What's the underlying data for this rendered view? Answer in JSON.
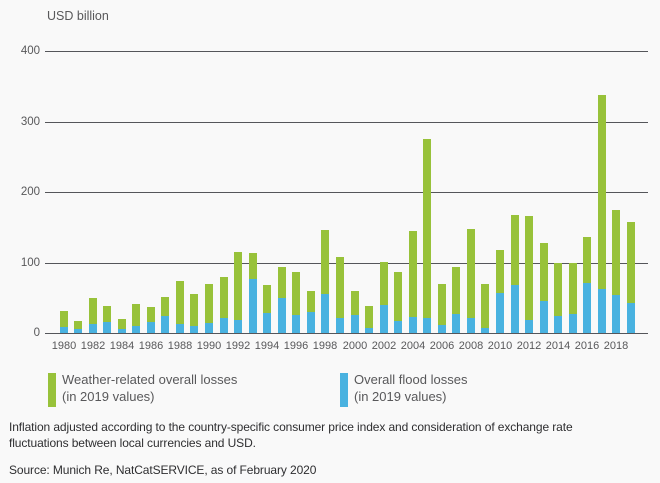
{
  "title": "USD billion",
  "chart_data": {
    "type": "bar",
    "title": "USD billion",
    "ylabel": "USD billion",
    "categories": [
      1980,
      1981,
      1982,
      1983,
      1984,
      1985,
      1986,
      1987,
      1988,
      1989,
      1990,
      1991,
      1992,
      1993,
      1994,
      1995,
      1996,
      1997,
      1998,
      1999,
      2000,
      2001,
      2002,
      2003,
      2004,
      2005,
      2006,
      2007,
      2008,
      2009,
      2010,
      2011,
      2012,
      2013,
      2014,
      2015,
      2016,
      2017,
      2018,
      2019
    ],
    "series": [
      {
        "name": "Weather-related overall losses (in 2019 values)",
        "color": "#98c23a",
        "values": [
          31,
          17,
          49,
          39,
          20,
          41,
          37,
          51,
          74,
          55,
          69,
          80,
          115,
          113,
          68,
          93,
          87,
          59,
          146,
          108,
          60,
          39,
          101,
          86,
          145,
          275,
          70,
          94,
          147,
          69,
          118,
          167,
          166,
          127,
          99,
          99,
          136,
          337,
          174,
          157
        ]
      },
      {
        "name": "Overall flood losses (in 2019 values)",
        "color": "#49b2e0",
        "values": [
          8,
          5,
          13,
          15,
          6,
          10,
          15,
          24,
          13,
          10,
          14,
          21,
          18,
          77,
          28,
          49,
          25,
          30,
          55,
          21,
          25,
          7,
          40,
          17,
          22,
          21,
          12,
          27,
          21,
          7,
          57,
          68,
          18,
          45,
          24,
          27,
          71,
          62,
          54,
          43
        ]
      }
    ],
    "stacking": "overlay - flood losses are a subset of overall losses",
    "ylim": [
      0,
      400
    ],
    "yticks": [
      0,
      100,
      200,
      300,
      400
    ],
    "xtick_labels": [
      "1980",
      "1982",
      "1984",
      "1986",
      "1988",
      "1990",
      "1992",
      "1994",
      "1996",
      "1998",
      "2000",
      "2002",
      "2004",
      "2006",
      "2008",
      "2010",
      "2012",
      "2014",
      "2016",
      "2018"
    ],
    "grid": true,
    "legend_position": "below-chart"
  },
  "legend": {
    "weather": {
      "line1": "Weather-related  overall losses",
      "line2": "(in 2019 values)",
      "color": "#98c23a"
    },
    "flood": {
      "line1": "Overall flood losses",
      "line2": "(in 2019 values)",
      "color": "#49b2e0"
    }
  },
  "footer": {
    "note_line1": "Inflation adjusted according to the country-specific consumer price index and consideration of  exchange rate",
    "note_line2": "fluctuations between local currencies and USD.",
    "source": "Source: Munich Re, NatCatSERVICE, as of February 2020"
  },
  "colors": {
    "green": "#98c23a",
    "blue": "#49b2e0",
    "grid": "#55565a",
    "axis_text": "#58585a",
    "footer_text": "#2e2e30",
    "background": "#f9f9f9"
  }
}
